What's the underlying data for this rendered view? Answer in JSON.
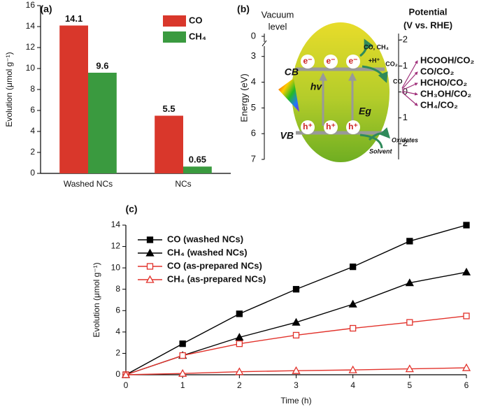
{
  "chart_data": [
    {
      "type": "bar",
      "label": "(a)",
      "ylabel": "Evolution (μmol g⁻¹)",
      "categories": [
        "Washed NCs",
        "NCs"
      ],
      "series": [
        {
          "name": "CO",
          "color": "#d9372b",
          "values": [
            14.1,
            5.5
          ]
        },
        {
          "name": "CH₄",
          "color": "#3a9a3f",
          "values": [
            9.6,
            0.65
          ]
        }
      ],
      "ylim": [
        0,
        16
      ],
      "yticks": [
        0,
        2,
        4,
        6,
        8,
        10,
        12,
        14,
        16
      ],
      "legend": "upper right"
    },
    {
      "type": "band-diagram",
      "label": "(b)",
      "axis_title": [
        "Vacuum",
        "level"
      ],
      "ylabel": "Energy (eV)",
      "vacuum_tick": 0,
      "ylim": [
        2.6,
        7
      ],
      "yticks": [
        3,
        4,
        5,
        6,
        7
      ],
      "y2label": "Potential",
      "y2unit": "(V vs. RHE)",
      "y2lim": [
        -2.25,
        2.6
      ],
      "y2ticks": [
        -2,
        -1,
        0,
        1,
        2
      ],
      "cb": "CB",
      "vb": "VB",
      "electron": "e⁻",
      "hole": "h⁺",
      "photon": "hv",
      "gap": "Eg",
      "reduction": {
        "products": "CO, CH₄",
        "proton": "+H⁺",
        "reactant": "CO₂",
        "product": "CO"
      },
      "oxidation": {
        "products": "Oxidates",
        "reactant": "Solvent"
      },
      "couples": [
        "HCOOH/CO₂",
        "CO/CO₂",
        "HCHO/CO₂",
        "CH₃OH/CO₂",
        "CH₄/CO₂"
      ]
    },
    {
      "type": "line",
      "label": "(c)",
      "xlabel": "Time (h)",
      "ylabel": "Evolution (μmol g⁻¹)",
      "x": [
        0,
        1,
        2,
        3,
        4,
        5,
        6
      ],
      "xlim": [
        0,
        6
      ],
      "xticks": [
        0,
        1,
        2,
        3,
        4,
        5,
        6
      ],
      "ylim": [
        0,
        14
      ],
      "yticks": [
        0,
        2,
        4,
        6,
        8,
        10,
        12,
        14
      ],
      "legend": "upper left",
      "series": [
        {
          "name": "CO (washed NCs)",
          "color": "#000000",
          "marker": "square",
          "filled": true,
          "values": [
            0,
            2.9,
            5.7,
            8.0,
            10.1,
            12.5,
            14.0
          ]
        },
        {
          "name": "CH₄ (washed NCs)",
          "color": "#000000",
          "marker": "triangle",
          "filled": true,
          "values": [
            0,
            1.8,
            3.5,
            4.9,
            6.6,
            8.6,
            9.6
          ]
        },
        {
          "name": "CO (as-prepared NCs)",
          "color": "#e2322b",
          "marker": "square",
          "filled": false,
          "values": [
            0,
            1.8,
            2.9,
            3.7,
            4.35,
            4.9,
            5.5
          ]
        },
        {
          "name": "CH₄ (as-prepared NCs)",
          "color": "#e2322b",
          "marker": "triangle",
          "filled": false,
          "values": [
            0,
            0.12,
            0.28,
            0.38,
            0.45,
            0.55,
            0.65
          ]
        }
      ]
    }
  ]
}
